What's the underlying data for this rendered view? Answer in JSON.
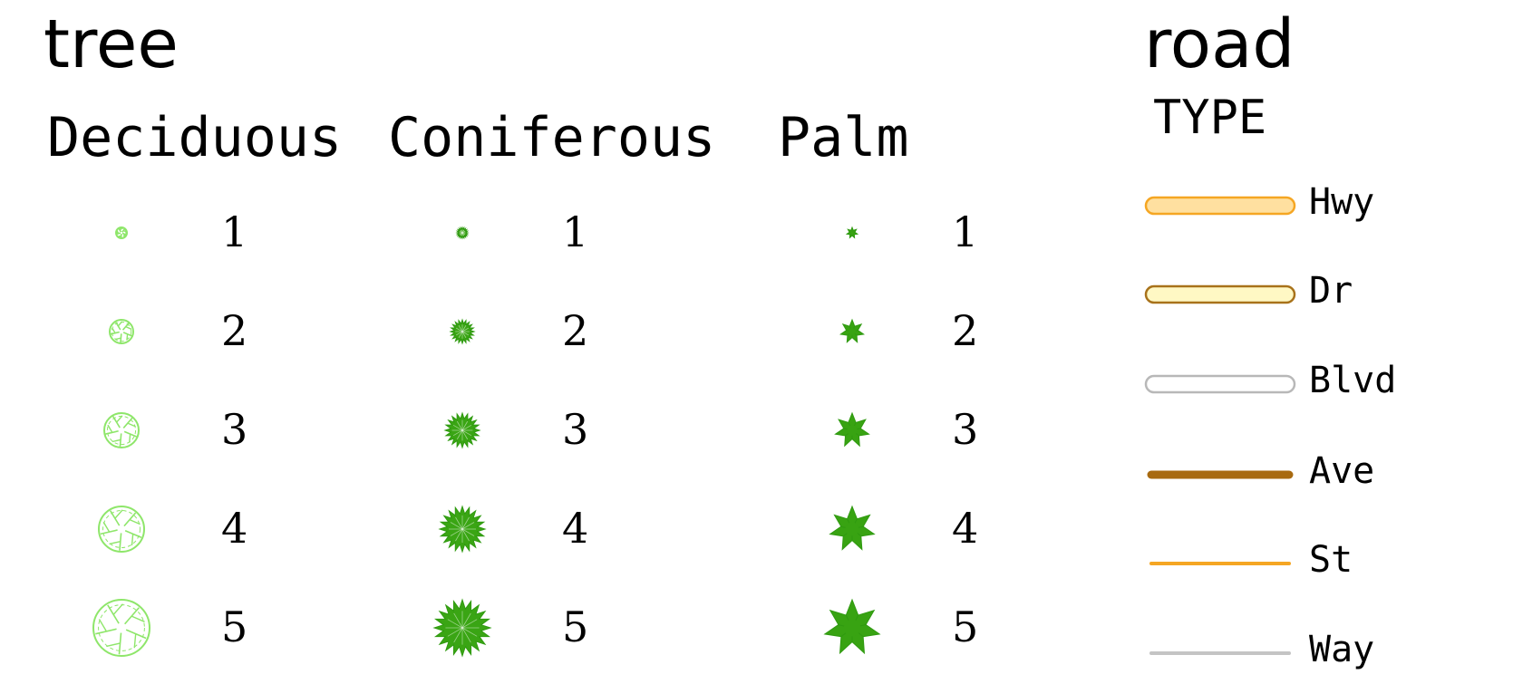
{
  "tree": {
    "title": "tree",
    "columns": [
      {
        "label": "Deciduous",
        "style": "deciduous",
        "fill": "#ffffff",
        "stroke": "#8ee66a",
        "classes": [
          "1",
          "2",
          "3",
          "4",
          "5"
        ]
      },
      {
        "label": "Coniferous",
        "style": "coniferous",
        "fill": "#3aa514",
        "stroke": "#2f9a10",
        "classes": [
          "1",
          "2",
          "3",
          "4",
          "5"
        ]
      },
      {
        "label": "Palm",
        "style": "palm",
        "fill": "#38a312",
        "stroke": "#2f9a10",
        "classes": [
          "1",
          "2",
          "3",
          "4",
          "5"
        ]
      }
    ]
  },
  "road": {
    "title": "road",
    "field": "TYPE",
    "types": [
      {
        "label": "Hwy",
        "style": "cased",
        "fill": "#ffe0a0",
        "stroke": "#f5a623"
      },
      {
        "label": "Dr",
        "style": "cased",
        "fill": "#fff8c4",
        "stroke": "#a8721a"
      },
      {
        "label": "Blvd",
        "style": "cased",
        "fill": "#ffffff",
        "stroke": "#b8b8b8"
      },
      {
        "label": "Ave",
        "style": "line",
        "stroke": "#a86a10",
        "weight": "thick"
      },
      {
        "label": "St",
        "style": "line",
        "stroke": "#f5a623",
        "weight": "thin"
      },
      {
        "label": "Way",
        "style": "line",
        "stroke": "#c4c4c4",
        "weight": "thin"
      }
    ]
  }
}
